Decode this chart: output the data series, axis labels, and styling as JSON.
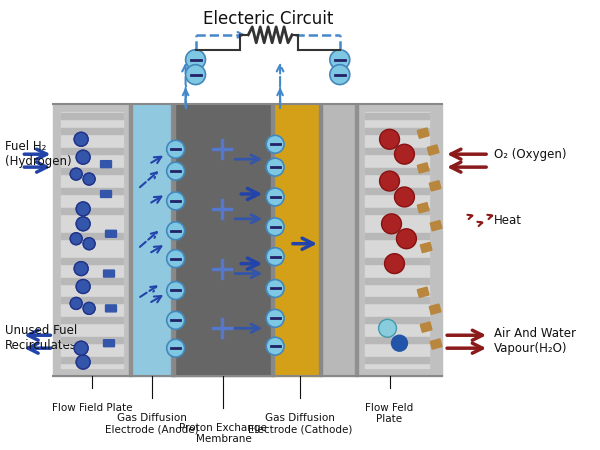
{
  "title": "Electeric Circuit",
  "bg_color": "#ffffff",
  "layer_colors": {
    "flow_plate_left": "#c8c8c8",
    "flow_plate_right": "#c8c8c8",
    "channel_left": "#e8e8e8",
    "channel_right": "#e8e8e8",
    "anode_gde": "#87ceeb",
    "membrane": "#707070",
    "cathode_gde": "#daa520",
    "separator": "#b0b0b0"
  },
  "labels": {
    "title": "Electeric Circuit",
    "fuel_h2": "Fuel H₂\n(Hydrogen)",
    "unused_fuel": "Unused Fuel\nRecirculates",
    "o2": "O₂ (Oxygen)",
    "heat": "Heat",
    "air_water": "Air And Water\nVapour(H₂O)",
    "flow_field_left": "Flow Field Plate",
    "gde_anode": "Gas Diffusion\nElectrode (Anode)",
    "membrane_label": "Proton Exchange\nMembrane",
    "gde_cathode": "Gas Diffusion\nElectrode (Cathode)",
    "flow_field_right": "Flow Feld\nPlate"
  },
  "colors": {
    "dark_blue": "#1a2d6b",
    "blue": "#2255bb",
    "steel_blue": "#4682b4",
    "cyan_circle": "#7ec8d8",
    "dark_red": "#8b1a1a",
    "red_circle": "#cc2222",
    "tan": "#c8a060",
    "light_cyan": "#aaddee",
    "dashed_blue": "#4488cc"
  }
}
